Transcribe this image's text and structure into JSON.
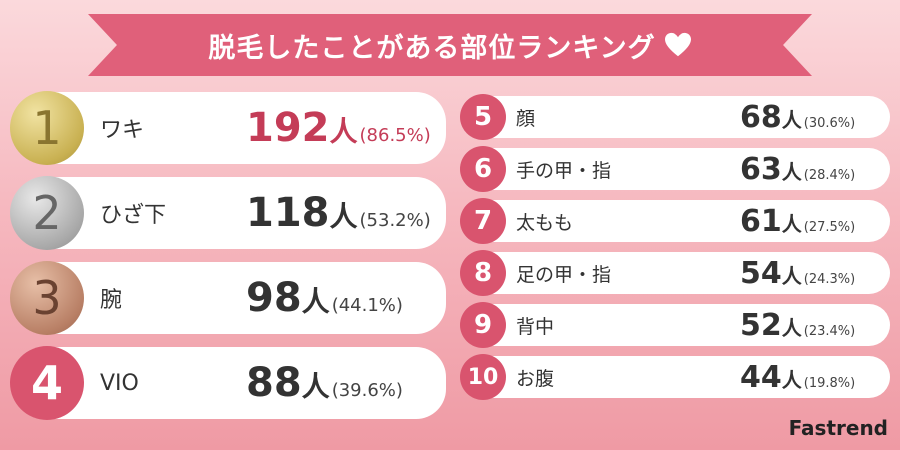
{
  "title": "脱毛したことがある部位ランキング",
  "brand": "Fastrend",
  "colors": {
    "accent": "#e0607a",
    "highlight": "#c43c57",
    "rank_badge": "#d9546e"
  },
  "left_ranks": [
    {
      "rank": "1",
      "part": "ワキ",
      "count": "192",
      "unit": "人",
      "pct": "(86.5%)",
      "medal": "gold"
    },
    {
      "rank": "2",
      "part": "ひざ下",
      "count": "118",
      "unit": "人",
      "pct": "(53.2%)",
      "medal": "silver"
    },
    {
      "rank": "3",
      "part": "腕",
      "count": "98",
      "unit": "人",
      "pct": "(44.1%)",
      "medal": "bronze"
    },
    {
      "rank": "4",
      "part": "VIO",
      "count": "88",
      "unit": "人",
      "pct": "(39.6%)",
      "medal": "pink"
    }
  ],
  "right_ranks": [
    {
      "rank": "5",
      "part": "顔",
      "count": "68",
      "unit": "人",
      "pct": "(30.6%)"
    },
    {
      "rank": "6",
      "part": "手の甲・指",
      "count": "63",
      "unit": "人",
      "pct": "(28.4%)"
    },
    {
      "rank": "7",
      "part": "太もも",
      "count": "61",
      "unit": "人",
      "pct": "(27.5%)"
    },
    {
      "rank": "8",
      "part": "足の甲・指",
      "count": "54",
      "unit": "人",
      "pct": "(24.3%)"
    },
    {
      "rank": "9",
      "part": "背中",
      "count": "52",
      "unit": "人",
      "pct": "(23.4%)"
    },
    {
      "rank": "10",
      "part": "お腹",
      "count": "44",
      "unit": "人",
      "pct": "(19.8%)"
    }
  ]
}
